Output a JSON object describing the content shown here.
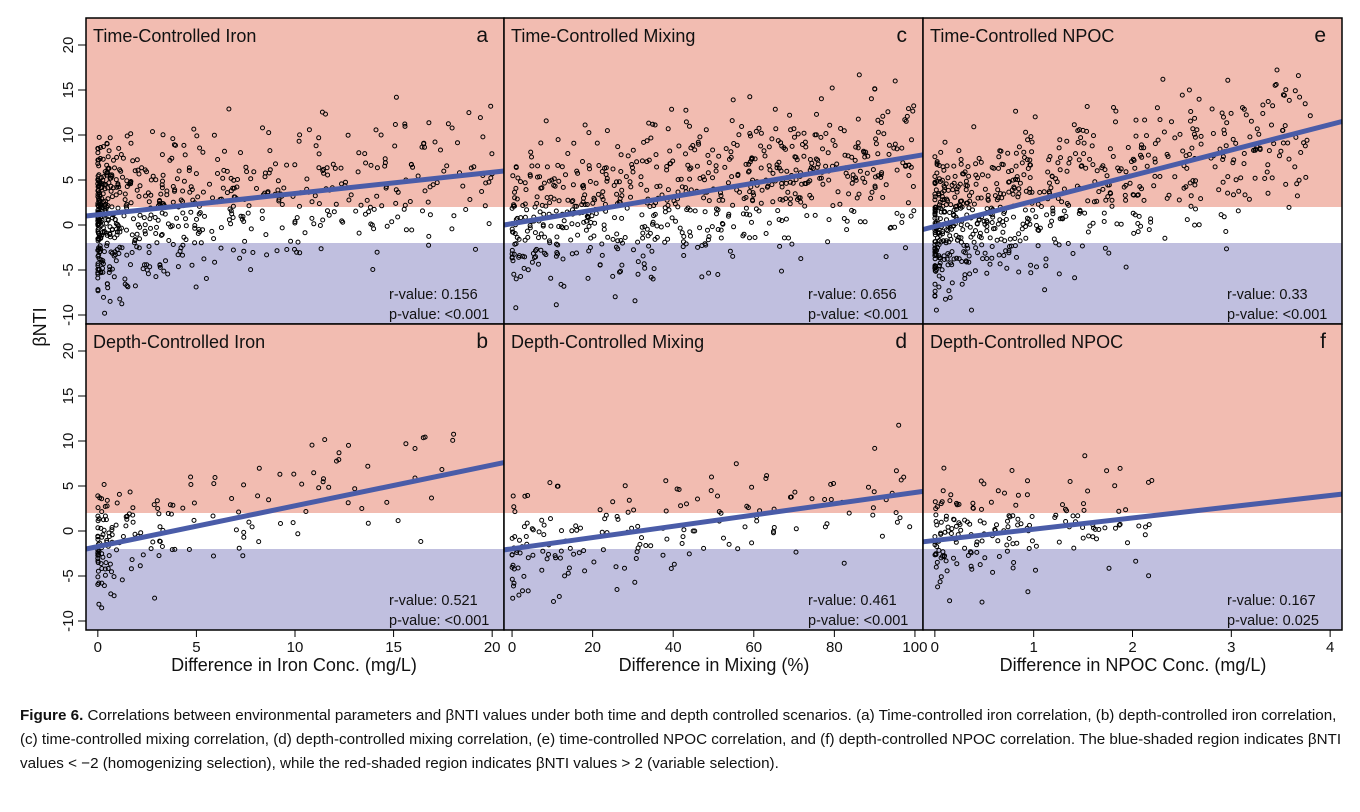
{
  "figure": {
    "ylabel": "βNTI",
    "xlabels": [
      "Difference in Iron Conc. (mg/L)",
      "Difference in Mixing (%)",
      "Difference in NPOC Conc. (mg/L)"
    ],
    "colors": {
      "red_band": "#f2bcb1",
      "blue_band": "#c0bfdf",
      "white_band": "#ffffff",
      "fit_line": "#4a5ca8",
      "points": "#000000"
    }
  },
  "caption": {
    "label": "Figure 6.",
    "text": "Correlations between environmental parameters and βNTI values under both time and depth controlled scenarios. (a) Time-controlled iron correlation, (b) depth-controlled iron correlation, (c) time-controlled mixing correlation, (d) depth-controlled mixing correlation, (e) time-controlled NPOC correlation, and (f) depth-controlled NPOC correlation. The blue-shaded region indicates βNTI values < −2 (homogenizing selection), while the red-shaded region indicates βNTI values > 2 (variable selection)."
  },
  "chart_data": [
    {
      "id": "a",
      "type": "scatter",
      "title": "Time-Controlled Iron",
      "panel_letter": "a",
      "ylabel": "βNTI",
      "xlabel": "",
      "xlim": [
        -0.6,
        20.6
      ],
      "ylim": [
        -11,
        23
      ],
      "yticks": [
        -10,
        -5,
        0,
        5,
        10,
        15,
        20
      ],
      "bands": {
        "blue": [
          -11,
          -2
        ],
        "white": [
          -2,
          2
        ],
        "red": [
          2,
          23
        ]
      },
      "fit": {
        "x": [
          -0.6,
          20.6
        ],
        "y": [
          1.0,
          6.0
        ]
      },
      "r_label": "r-value: 0.156",
      "p_label": "p-value: <0.001",
      "points": {
        "xrange": [
          0,
          20
        ],
        "yrange": [
          -10,
          20
        ],
        "n": 650,
        "skew": 2.6,
        "slope": 0.24,
        "intercept": 1.2,
        "spread": 5.2
      }
    },
    {
      "id": "c",
      "type": "scatter",
      "title": "Time-Controlled Mixing",
      "panel_letter": "c",
      "xlabel": "",
      "xlim": [
        -2,
        102
      ],
      "ylim": [
        -11,
        23
      ],
      "bands": {
        "blue": [
          -11,
          -2
        ],
        "white": [
          -2,
          2
        ],
        "red": [
          2,
          23
        ]
      },
      "fit": {
        "x": [
          -2,
          102
        ],
        "y": [
          0.0,
          7.8
        ]
      },
      "r_label": "r-value: 0.656",
      "p_label": "p-value: <0.001",
      "points": {
        "xrange": [
          0,
          100
        ],
        "yrange": [
          -10,
          20
        ],
        "n": 700,
        "skew": 1.3,
        "slope": 0.075,
        "intercept": 0.2,
        "spread": 4.8
      }
    },
    {
      "id": "e",
      "type": "scatter",
      "title": "Time-Controlled NPOC",
      "panel_letter": "e",
      "xlabel": "",
      "xlim": [
        -0.12,
        4.12
      ],
      "ylim": [
        -11,
        23
      ],
      "bands": {
        "blue": [
          -11,
          -2
        ],
        "white": [
          -2,
          2
        ],
        "red": [
          2,
          23
        ]
      },
      "fit": {
        "x": [
          -0.12,
          4.12
        ],
        "y": [
          -0.5,
          11.5
        ]
      },
      "r_label": "r-value: 0.33",
      "p_label": "p-value: <0.001",
      "points": {
        "xrange": [
          0,
          3.8
        ],
        "yrange": [
          -10,
          20
        ],
        "n": 700,
        "skew": 2.2,
        "slope": 2.8,
        "intercept": -0.2,
        "spread": 5.0
      }
    },
    {
      "id": "b",
      "type": "scatter",
      "title": "Depth-Controlled Iron",
      "panel_letter": "b",
      "ylabel": "βNTI",
      "xlabel": "Difference in Iron Conc. (mg/L)",
      "xlim": [
        -0.6,
        20.6
      ],
      "ylim": [
        -11,
        23
      ],
      "yticks": [
        -10,
        -5,
        0,
        5,
        10,
        15,
        20
      ],
      "xticks": [
        0,
        5,
        10,
        15,
        20
      ],
      "bands": {
        "blue": [
          -11,
          -2
        ],
        "white": [
          -2,
          2
        ],
        "red": [
          2,
          23
        ]
      },
      "fit": {
        "x": [
          -0.6,
          20.6
        ],
        "y": [
          -2.0,
          7.6
        ]
      },
      "r_label": "r-value: 0.521",
      "p_label": "p-value: <0.001",
      "points": {
        "xrange": [
          0,
          19.8
        ],
        "yrange": [
          -10,
          12
        ],
        "n": 170,
        "skew": 3.0,
        "slope": 0.45,
        "intercept": -1.5,
        "spread": 3.6
      }
    },
    {
      "id": "d",
      "type": "scatter",
      "title": "Depth-Controlled Mixing",
      "panel_letter": "d",
      "xlabel": "Difference in Mixing (%)",
      "xlim": [
        -2,
        102
      ],
      "ylim": [
        -11,
        23
      ],
      "xticks": [
        0,
        20,
        40,
        60,
        80,
        100
      ],
      "bands": {
        "blue": [
          -11,
          -2
        ],
        "white": [
          -2,
          2
        ],
        "red": [
          2,
          23
        ]
      },
      "fit": {
        "x": [
          -2,
          102
        ],
        "y": [
          -2.1,
          4.4
        ]
      },
      "r_label": "r-value: 0.461",
      "p_label": "p-value: <0.001",
      "points": {
        "xrange": [
          0,
          100
        ],
        "yrange": [
          -10,
          12
        ],
        "n": 170,
        "skew": 1.6,
        "slope": 0.065,
        "intercept": -1.8,
        "spread": 3.8
      }
    },
    {
      "id": "f",
      "type": "scatter",
      "title": "Depth-Controlled NPOC",
      "panel_letter": "f",
      "xlabel": "Difference in NPOC Conc. (mg/L)",
      "xlim": [
        -0.12,
        4.12
      ],
      "ylim": [
        -11,
        23
      ],
      "xticks": [
        0,
        1,
        2,
        3,
        4
      ],
      "bands": {
        "blue": [
          -11,
          -2
        ],
        "white": [
          -2,
          2
        ],
        "red": [
          2,
          23
        ]
      },
      "fit": {
        "x": [
          -0.12,
          4.12
        ],
        "y": [
          -1.2,
          4.1
        ]
      },
      "r_label": "r-value: 0.167",
      "p_label": "p-value: 0.025",
      "points": {
        "xrange": [
          0,
          2.2
        ],
        "yrange": [
          -10,
          12
        ],
        "n": 170,
        "skew": 1.6,
        "slope": 1.2,
        "intercept": -0.5,
        "spread": 4.0
      }
    }
  ]
}
